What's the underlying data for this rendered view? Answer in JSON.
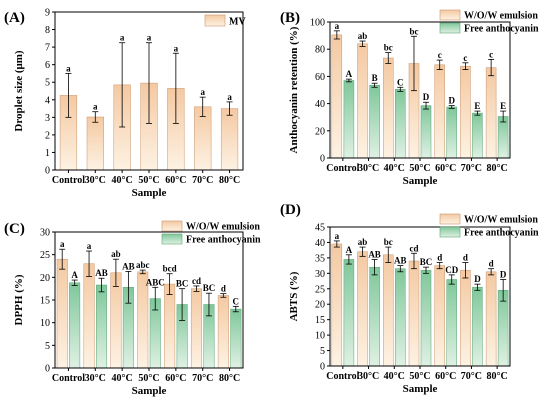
{
  "figure": {
    "panels": [
      "(A)",
      "(B)",
      "(C)",
      "(D)"
    ]
  },
  "colors": {
    "orange_top": "#f4c9a2",
    "orange_bottom": "#fdf2e3",
    "green_top": "#7fc79a",
    "green_bottom": "#dff1e3",
    "axis": "#000000"
  },
  "chart_data": [
    {
      "panel_label": "(A)",
      "type": "bar",
      "title": "",
      "xlabel": "Sample",
      "ylabel": "Droplet size (μm)",
      "ylim": [
        0,
        9
      ],
      "yticks": [
        0,
        1,
        2,
        3,
        4,
        5,
        6,
        7,
        8,
        9
      ],
      "categories": [
        "Control",
        "30°C",
        "40°C",
        "50°C",
        "60°C",
        "70°C",
        "80°C"
      ],
      "legend_position": "top-right",
      "series": [
        {
          "name": "MV",
          "color": "orange",
          "values": [
            4.25,
            3.02,
            4.85,
            4.95,
            4.65,
            3.6,
            3.5
          ],
          "errors": [
            1.25,
            0.3,
            2.4,
            2.3,
            2.0,
            0.55,
            0.38
          ],
          "letters": [
            "a",
            "a",
            "a",
            "a",
            "a",
            "a",
            "a"
          ]
        }
      ]
    },
    {
      "panel_label": "(B)",
      "type": "bar",
      "title": "",
      "xlabel": "Sample",
      "ylabel": "Anthocyanin retention (%)",
      "ylim": [
        0,
        100
      ],
      "yticks": [
        0,
        20,
        40,
        60,
        80,
        100
      ],
      "categories": [
        "Control",
        "30°C",
        "40°C",
        "50°C",
        "60°C",
        "70°C",
        "80°C"
      ],
      "legend_position": "top-right",
      "series": [
        {
          "name": "W/O/W emulsion",
          "color": "orange",
          "values": [
            90.5,
            84.0,
            73.5,
            69.5,
            68.5,
            67.5,
            66.5
          ],
          "errors": [
            3.0,
            2.0,
            4.0,
            20.0,
            3.5,
            2.5,
            6.0
          ],
          "letters": [
            "a",
            "ab",
            "bc",
            "bc",
            "c",
            "c",
            "c"
          ]
        },
        {
          "name": "Free anthocyanin",
          "color": "green",
          "values": [
            57.0,
            53.5,
            50.5,
            38.5,
            37.5,
            33.0,
            30.5
          ],
          "errors": [
            1.0,
            1.5,
            1.5,
            2.5,
            1.0,
            1.5,
            4.0
          ],
          "letters": [
            "A",
            "B",
            "C",
            "D",
            "D",
            "E",
            "E"
          ]
        }
      ]
    },
    {
      "panel_label": "(C)",
      "type": "bar",
      "title": "",
      "xlabel": "Sample",
      "ylabel": "DPPH (%)",
      "ylim": [
        0,
        30
      ],
      "yticks": [
        0,
        5,
        10,
        15,
        20,
        25,
        30
      ],
      "categories": [
        "Control",
        "30°C",
        "40°C",
        "50°C",
        "60°C",
        "70°C",
        "80°C"
      ],
      "legend_position": "top-right",
      "series": [
        {
          "name": "W/O/W emulsion",
          "color": "orange",
          "values": [
            24.0,
            23.0,
            21.0,
            21.2,
            18.5,
            17.5,
            16.0
          ],
          "errors": [
            2.2,
            2.8,
            3.0,
            0.4,
            2.3,
            0.6,
            0.4
          ],
          "letters": [
            "a",
            "a",
            "ab",
            "abc",
            "bcd",
            "cd",
            "d"
          ]
        },
        {
          "name": "Free anthocyanin",
          "color": "green",
          "values": [
            18.8,
            18.3,
            17.8,
            15.3,
            14.0,
            14.0,
            13.0
          ],
          "errors": [
            0.6,
            1.5,
            3.5,
            2.5,
            3.5,
            2.5,
            0.6
          ],
          "letters": [
            "A",
            "AB",
            "AB",
            "ABC",
            "BC",
            "BC",
            "C"
          ]
        }
      ]
    },
    {
      "panel_label": "(D)",
      "type": "bar",
      "title": "",
      "xlabel": "Sample",
      "ylabel": "ABTS (%)",
      "ylim": [
        0,
        45
      ],
      "yticks": [
        0,
        5,
        10,
        15,
        20,
        25,
        30,
        35,
        40,
        45
      ],
      "categories": [
        "Control",
        "30°C",
        "40°C",
        "50°C",
        "60°C",
        "70°C",
        "80°C"
      ],
      "legend_position": "top-right",
      "series": [
        {
          "name": "W/O/W emulsion",
          "color": "orange",
          "values": [
            39.5,
            37.0,
            36.0,
            34.0,
            32.5,
            31.0,
            30.5
          ],
          "errors": [
            1.0,
            1.5,
            2.5,
            2.5,
            1.0,
            2.5,
            1.0
          ],
          "letters": [
            "a",
            "ab",
            "bc",
            "cd",
            "d",
            "d",
            "d"
          ]
        },
        {
          "name": "Free anthocyanin",
          "color": "green",
          "values": [
            34.5,
            32.0,
            31.5,
            31.0,
            28.0,
            25.5,
            24.5
          ],
          "errors": [
            1.5,
            2.5,
            1.0,
            1.0,
            1.5,
            1.0,
            3.5
          ],
          "letters": [
            "A",
            "AB",
            "AB",
            "BC",
            "CD",
            "D",
            "D"
          ]
        }
      ]
    }
  ]
}
